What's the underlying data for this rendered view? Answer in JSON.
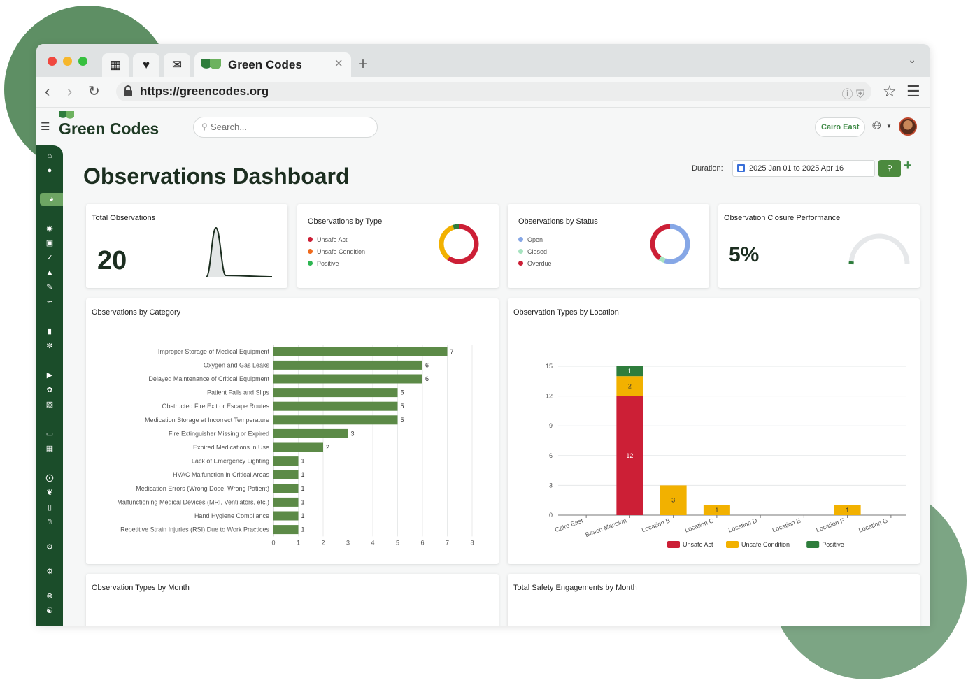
{
  "browser": {
    "tab_title": "Green Codes",
    "url": "https://greencodes.org",
    "colors": {
      "accent": "#3f8a46",
      "sidebar": "#1b4d2a"
    }
  },
  "app": {
    "brand": "Green Codes",
    "search_placeholder": "Search...",
    "location": "Cairo East",
    "page_title": "Observations Dashboard",
    "duration_label": "Duration:",
    "duration_value": "2025 Jan 01 to 2025 Apr 16"
  },
  "cards": {
    "total": {
      "title": "Total Observations",
      "value": "20"
    },
    "by_type": {
      "title": "Observations by Type",
      "legend": [
        {
          "label": "Unsafe Act",
          "color": "#cc1f36"
        },
        {
          "label": "Unsafe Condition",
          "color": "#ef6b1d"
        },
        {
          "label": "Positive",
          "color": "#2fb653"
        }
      ]
    },
    "by_status": {
      "title": "Observations by Status",
      "legend": [
        {
          "label": "Open",
          "color": "#86a7e6"
        },
        {
          "label": "Closed",
          "color": "#a6e3bf"
        },
        {
          "label": "Overdue",
          "color": "#cc1f36"
        }
      ]
    },
    "closure": {
      "title": "Observation Closure Performance",
      "value": "5%"
    },
    "by_category_title": "Observations by Category",
    "by_location_title": "Observation Types by Location",
    "by_month_title": "Observation Types by Month",
    "engagements_title": "Total Safety Engagements by Month"
  },
  "chart_data": [
    {
      "type": "pie",
      "title": "Observations by Type",
      "categories": [
        "Unsafe Act",
        "Unsafe Condition",
        "Positive"
      ],
      "values": [
        12,
        7,
        1
      ],
      "colors": [
        "#cc1f36",
        "#f2b100",
        "#2e7d3c"
      ]
    },
    {
      "type": "pie",
      "title": "Observations by Status",
      "categories": [
        "Open",
        "Closed",
        "Overdue"
      ],
      "values": [
        11,
        1,
        8
      ],
      "colors": [
        "#86a7e6",
        "#a6e3bf",
        "#cc1f36"
      ]
    },
    {
      "type": "bar",
      "title": "Observations by Category",
      "orientation": "horizontal",
      "categories": [
        "Improper Storage of Medical Equipment",
        "Oxygen and Gas Leaks",
        "Delayed Maintenance of Critical Equipment",
        "Patient Falls and Slips",
        "Obstructed Fire Exit or Escape Routes",
        "Medication Storage at Incorrect Temperature",
        "Fire Extinguisher Missing or Expired",
        "Expired Medications in Use",
        "Lack of Emergency Lighting",
        "HVAC Malfunction in Critical Areas",
        "Medication Errors (Wrong Dose, Wrong Patient)",
        "Malfunctioning Medical Devices (MRI, Ventilators, etc.)",
        "Hand Hygiene Compliance",
        "Repetitive Strain Injuries (RSI) Due to Work Practices"
      ],
      "values": [
        7,
        6,
        6,
        5,
        5,
        5,
        3,
        2,
        1,
        1,
        1,
        1,
        1,
        1
      ],
      "xlim": [
        0,
        8
      ],
      "xticks": [
        0,
        1,
        2,
        3,
        4,
        5,
        6,
        7,
        8
      ],
      "color": "#5c8a47"
    },
    {
      "type": "bar",
      "stacked": true,
      "title": "Observation Types by Location",
      "categories": [
        "Cairo East",
        "Beach Mansion",
        "Location B",
        "Location C",
        "Location D",
        "Location E",
        "Location F",
        "Location G"
      ],
      "series": [
        {
          "name": "Unsafe Act",
          "values": [
            0,
            12,
            0,
            0,
            0,
            0,
            0,
            0
          ],
          "color": "#cc1f36"
        },
        {
          "name": "Unsafe Condition",
          "values": [
            0,
            2,
            3,
            1,
            0,
            0,
            1,
            0
          ],
          "color": "#f2b100"
        },
        {
          "name": "Positive",
          "values": [
            0,
            1,
            0,
            0,
            0,
            0,
            0,
            0
          ],
          "color": "#2e7d3c"
        }
      ],
      "ylim": [
        0,
        15
      ],
      "yticks": [
        0,
        3,
        6,
        9,
        12,
        15
      ],
      "legend": "bottom"
    }
  ]
}
